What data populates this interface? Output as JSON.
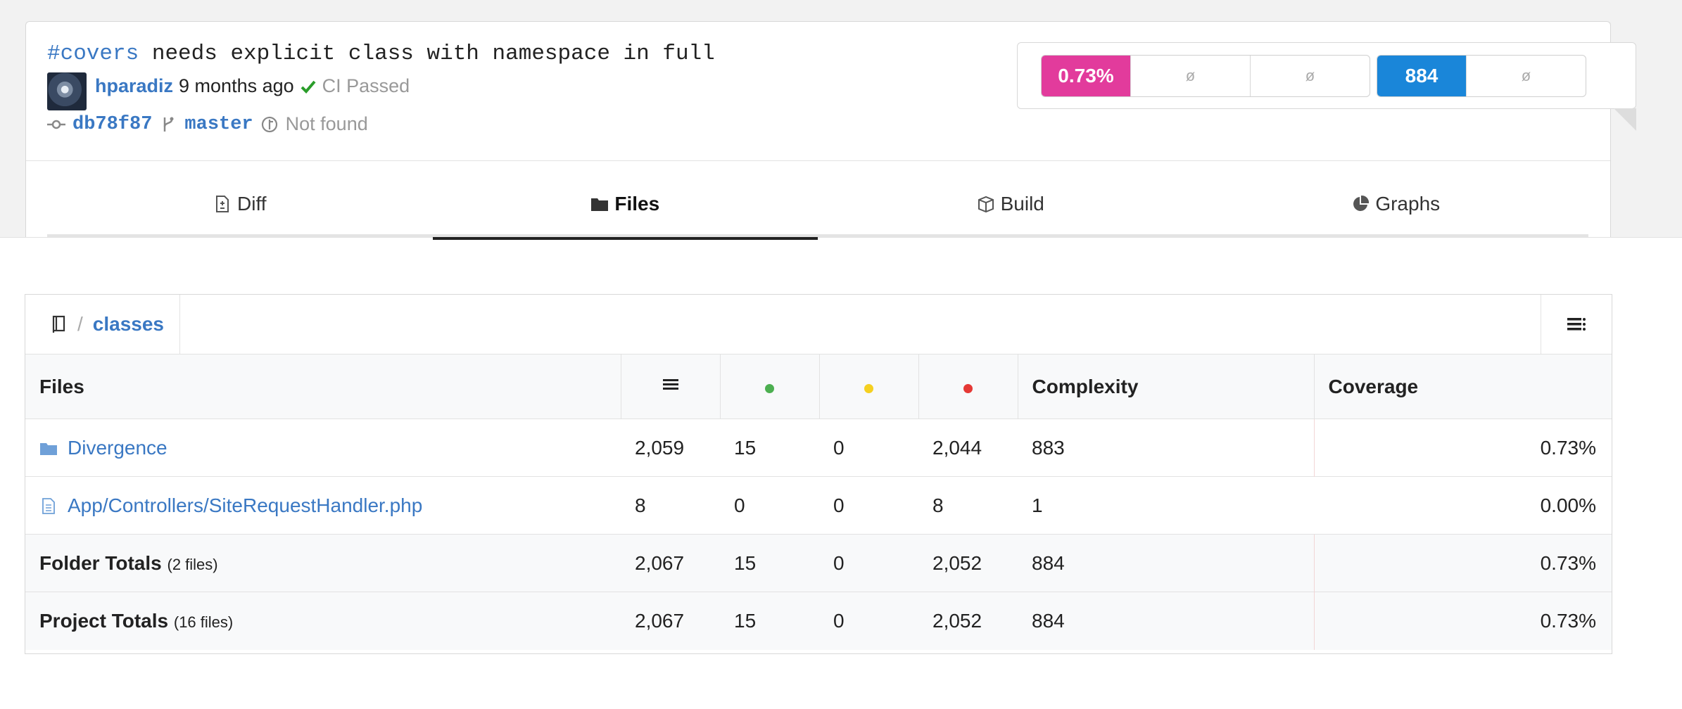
{
  "commit": {
    "tag": "#covers",
    "message": " needs explicit class with namespace in full",
    "author": "hparadiz",
    "time": "9 months ago",
    "ci_status": "CI Passed",
    "sha": "db78f87",
    "branch": "master",
    "pr_status": "Not found"
  },
  "badges": {
    "coverage": "0.73%",
    "coverage_change": "ø",
    "coverage_diff": "ø",
    "complexity": "884",
    "complexity_change": "ø",
    "colors": {
      "coverage": "#e23b9c",
      "complexity": "#1a86d9"
    }
  },
  "tabs": [
    {
      "label": "Diff",
      "icon": "file-diff-icon"
    },
    {
      "label": "Files",
      "icon": "folder-icon",
      "active": true
    },
    {
      "label": "Build",
      "icon": "box-icon"
    },
    {
      "label": "Graphs",
      "icon": "pie-chart-icon"
    }
  ],
  "breadcrumb": {
    "current": "classes",
    "separator": "/"
  },
  "table": {
    "headers": {
      "files": "Files",
      "complexity": "Complexity",
      "coverage": "Coverage"
    },
    "status_colors": {
      "hit": "#4caf50",
      "partial": "#f5d020",
      "miss": "#e53935"
    },
    "rows": [
      {
        "name": "Divergence",
        "type": "folder",
        "lines": "2,059",
        "hits": "15",
        "partials": "0",
        "misses": "2,044",
        "complexity": "883",
        "coverage": "0.73%"
      },
      {
        "name": "App/Controllers/SiteRequestHandler.php",
        "type": "file",
        "lines": "8",
        "hits": "0",
        "partials": "0",
        "misses": "8",
        "complexity": "1",
        "coverage": "0.00%"
      }
    ],
    "totals": [
      {
        "label": "Folder Totals",
        "count": "(2 files)",
        "lines": "2,067",
        "hits": "15",
        "partials": "0",
        "misses": "2,052",
        "complexity": "884",
        "coverage": "0.73%"
      },
      {
        "label": "Project Totals",
        "count": "(16 files)",
        "lines": "2,067",
        "hits": "15",
        "partials": "0",
        "misses": "2,052",
        "complexity": "884",
        "coverage": "0.73%"
      }
    ]
  }
}
